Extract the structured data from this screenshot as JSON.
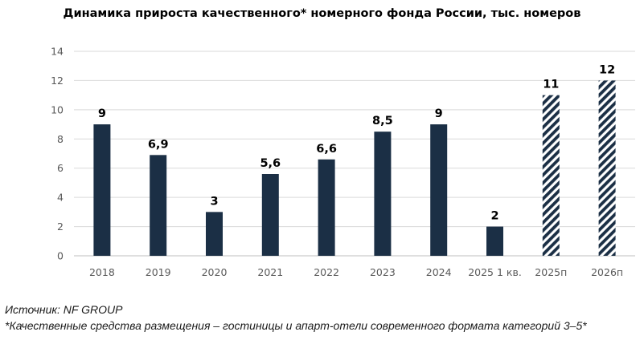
{
  "chart_data": {
    "type": "bar",
    "title": "Динамика прироста качественного* номерного фонда России, тыс. номеров",
    "xlabel": "",
    "ylabel": "",
    "categories": [
      "2018",
      "2019",
      "2020",
      "2021",
      "2022",
      "2023",
      "2024",
      "2025 1 кв.",
      "2025п",
      "2026п"
    ],
    "values": [
      9,
      6.9,
      3,
      5.6,
      6.6,
      8.5,
      9,
      2,
      11,
      12
    ],
    "data_labels": [
      "9",
      "6,9",
      "3",
      "5,6",
      "6,6",
      "8,5",
      "9",
      "2",
      "11",
      "12"
    ],
    "forecast": [
      false,
      false,
      false,
      false,
      false,
      false,
      false,
      false,
      true,
      true
    ],
    "ylim": [
      0,
      14
    ],
    "yticks": [
      0,
      2,
      4,
      6,
      8,
      10,
      12,
      14
    ],
    "grid": true,
    "legend": "none",
    "colors": {
      "bar": "#1b2f45",
      "hatch_background": "#ffffff",
      "gridline": "#d9d9d9",
      "axis_line": "#bfbfbf",
      "tick_text": "#595959"
    }
  },
  "footnotes": {
    "source": "Источник: NF GROUP",
    "definition": "*Качественные средства размещения – гостиницы и апарт-отели современного формата категорий 3–5*"
  }
}
